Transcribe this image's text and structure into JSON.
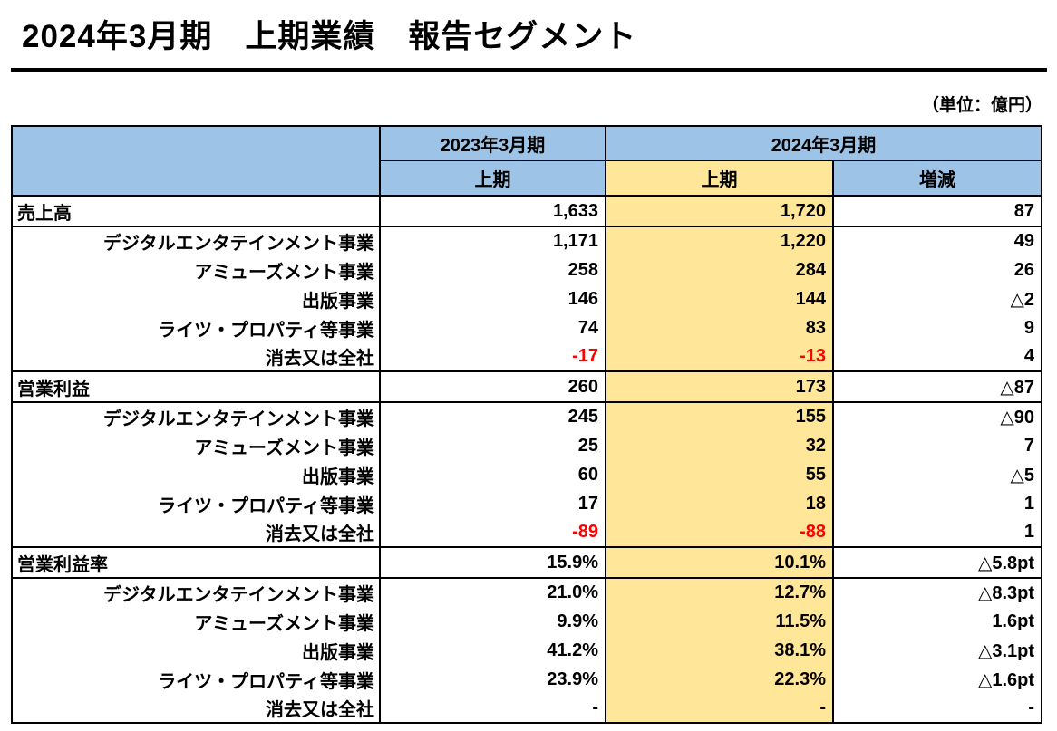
{
  "page": {
    "title": "2024年3月期　上期業績　報告セグメント",
    "unit_label": "（単位：億円）"
  },
  "colors": {
    "header_blue": "#9DC3E6",
    "highlight_yellow": "#FFE699",
    "negative_red": "#FF0000",
    "border": "#000000"
  },
  "table": {
    "header": {
      "period_2023": "2023年3月期",
      "period_2024": "2024年3月期",
      "sub_2023_h1": "上期",
      "sub_2024_h1": "上期",
      "sub_change": "増減"
    },
    "rows": [
      {
        "label": "売上高",
        "type": "total",
        "values": [
          "1,633",
          "1,720",
          "87"
        ],
        "red": [
          false,
          false,
          false
        ]
      },
      {
        "label": "デジタルエンタテインメント事業",
        "type": "sub",
        "values": [
          "1,171",
          "1,220",
          "49"
        ],
        "red": [
          false,
          false,
          false
        ]
      },
      {
        "label": "アミューズメント事業",
        "type": "sub",
        "values": [
          "258",
          "284",
          "26"
        ],
        "red": [
          false,
          false,
          false
        ]
      },
      {
        "label": "出版事業",
        "type": "sub",
        "values": [
          "146",
          "144",
          "△2"
        ],
        "red": [
          false,
          false,
          false
        ]
      },
      {
        "label": "ライツ・プロパティ等事業",
        "type": "sub",
        "values": [
          "74",
          "83",
          "9"
        ],
        "red": [
          false,
          false,
          false
        ]
      },
      {
        "label": "消去又は全社",
        "type": "sub",
        "values": [
          "-17",
          "-13",
          "4"
        ],
        "red": [
          true,
          true,
          false
        ]
      },
      {
        "label": "営業利益",
        "type": "total",
        "values": [
          "260",
          "173",
          "△87"
        ],
        "red": [
          false,
          false,
          false
        ]
      },
      {
        "label": "デジタルエンタテインメント事業",
        "type": "sub",
        "values": [
          "245",
          "155",
          "△90"
        ],
        "red": [
          false,
          false,
          false
        ]
      },
      {
        "label": "アミューズメント事業",
        "type": "sub",
        "values": [
          "25",
          "32",
          "7"
        ],
        "red": [
          false,
          false,
          false
        ]
      },
      {
        "label": "出版事業",
        "type": "sub",
        "values": [
          "60",
          "55",
          "△5"
        ],
        "red": [
          false,
          false,
          false
        ]
      },
      {
        "label": "ライツ・プロパティ等事業",
        "type": "sub",
        "values": [
          "17",
          "18",
          "1"
        ],
        "red": [
          false,
          false,
          false
        ]
      },
      {
        "label": "消去又は全社",
        "type": "sub",
        "values": [
          "-89",
          "-88",
          "1"
        ],
        "red": [
          true,
          true,
          false
        ]
      },
      {
        "label": "営業利益率",
        "type": "total",
        "values": [
          "15.9%",
          "10.1%",
          "△5.8pt"
        ],
        "red": [
          false,
          false,
          false
        ]
      },
      {
        "label": "デジタルエンタテインメント事業",
        "type": "sub",
        "values": [
          "21.0%",
          "12.7%",
          "△8.3pt"
        ],
        "red": [
          false,
          false,
          false
        ]
      },
      {
        "label": "アミューズメント事業",
        "type": "sub",
        "values": [
          "9.9%",
          "11.5%",
          "1.6pt"
        ],
        "red": [
          false,
          false,
          false
        ]
      },
      {
        "label": "出版事業",
        "type": "sub",
        "values": [
          "41.2%",
          "38.1%",
          "△3.1pt"
        ],
        "red": [
          false,
          false,
          false
        ]
      },
      {
        "label": "ライツ・プロパティ等事業",
        "type": "sub",
        "values": [
          "23.9%",
          "22.3%",
          "△1.6pt"
        ],
        "red": [
          false,
          false,
          false
        ]
      },
      {
        "label": "消去又は全社",
        "type": "sub",
        "values": [
          "-",
          "-",
          "-"
        ],
        "red": [
          false,
          false,
          false
        ]
      }
    ]
  }
}
